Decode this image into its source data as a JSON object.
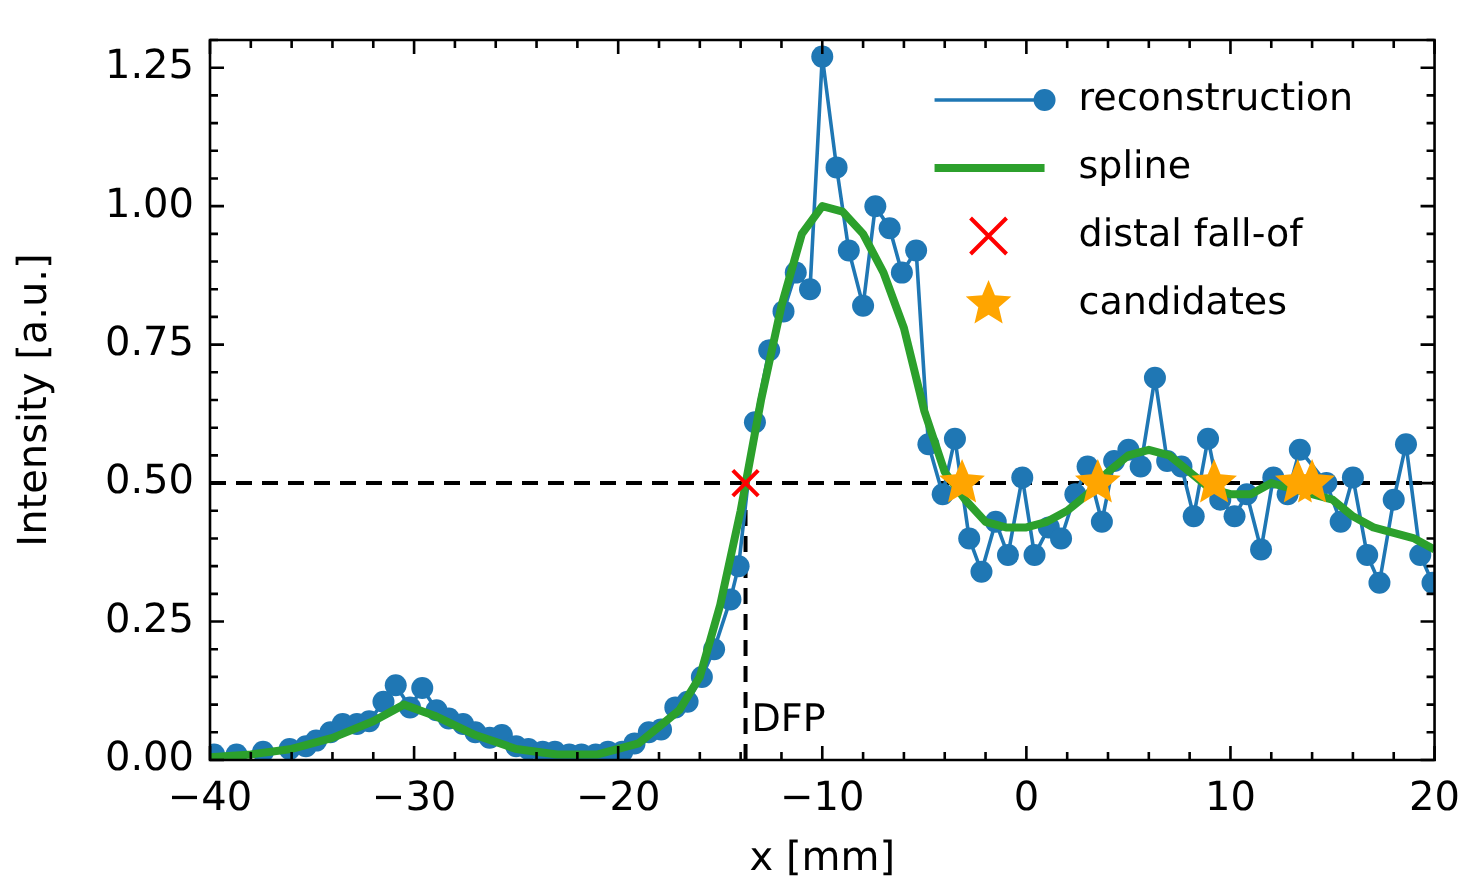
{
  "chart_data": {
    "type": "line",
    "xlabel": "x [mm]",
    "ylabel": "Intensity [a.u.]",
    "xlim": [
      -40,
      20
    ],
    "xticks": [
      {
        "value": -40,
        "label": "−40"
      },
      {
        "value": -38,
        "label": null
      },
      {
        "value": -36,
        "label": null
      },
      {
        "value": -34,
        "label": null
      },
      {
        "value": -32,
        "label": null
      },
      {
        "value": -30,
        "label": "−30"
      },
      {
        "value": -28,
        "label": null
      },
      {
        "value": -26,
        "label": null
      },
      {
        "value": -24,
        "label": null
      },
      {
        "value": -22,
        "label": null
      },
      {
        "value": -20,
        "label": "−20"
      },
      {
        "value": -18,
        "label": null
      },
      {
        "value": -16,
        "label": null
      },
      {
        "value": -14,
        "label": null
      },
      {
        "value": -12,
        "label": null
      },
      {
        "value": -10,
        "label": "−10"
      },
      {
        "value": -8,
        "label": null
      },
      {
        "value": -6,
        "label": null
      },
      {
        "value": -4,
        "label": null
      },
      {
        "value": -2,
        "label": null
      },
      0,
      {
        "value": 2,
        "label": null
      },
      {
        "value": 4,
        "label": null
      },
      {
        "value": 6,
        "label": null
      },
      {
        "value": 8,
        "label": null
      },
      10,
      {
        "value": 12,
        "label": null
      },
      {
        "value": 14,
        "label": null
      },
      {
        "value": 16,
        "label": null
      },
      {
        "value": 18,
        "label": null
      },
      20
    ],
    "ylim": [
      0,
      1.3
    ],
    "yticks": [
      {
        "value": 0,
        "label": "0.00"
      },
      {
        "value": 0.05,
        "label": null
      },
      {
        "value": 0.1,
        "label": null
      },
      {
        "value": 0.15,
        "label": null
      },
      {
        "value": 0.2,
        "label": null
      },
      0.25,
      {
        "value": 0.3,
        "label": null
      },
      {
        "value": 0.35,
        "label": null
      },
      {
        "value": 0.4,
        "label": null
      },
      {
        "value": 0.45,
        "label": null
      },
      {
        "value": 0.5,
        "label": "0.50"
      },
      {
        "value": 0.55,
        "label": null
      },
      {
        "value": 0.6,
        "label": null
      },
      {
        "value": 0.65,
        "label": null
      },
      {
        "value": 0.7,
        "label": null
      },
      0.75,
      {
        "value": 0.8,
        "label": null
      },
      {
        "value": 0.85,
        "label": null
      },
      {
        "value": 0.9,
        "label": null
      },
      {
        "value": 0.95,
        "label": null
      },
      {
        "value": 1,
        "label": "1.00"
      },
      {
        "value": 1.05,
        "label": null
      },
      {
        "value": 1.1,
        "label": null
      },
      {
        "value": 1.15,
        "label": null
      },
      {
        "value": 1.2,
        "label": null
      },
      1.25,
      {
        "value": 1.3,
        "label": null
      }
    ],
    "grid": false,
    "legend": "top right",
    "ref_lines": [
      {
        "axis": "y",
        "value": 0.5,
        "color": "#000000",
        "line_style": "dashed"
      },
      {
        "axis": "x",
        "value": -13.76,
        "label": "DFP",
        "color": "#000000",
        "line_style": "dashed"
      }
    ],
    "series": [
      {
        "name": "reconstruction",
        "color": "#1f77b4",
        "marker": "circle",
        "line_style": "solid",
        "x": [
          -39.8,
          -38.7,
          -37.4,
          -36.1,
          -35.3,
          -34.8,
          -34.1,
          -33.5,
          -32.8,
          -32.2,
          -31.5,
          -30.9,
          -30.2,
          -29.6,
          -28.9,
          -28.3,
          -27.6,
          -27.0,
          -26.3,
          -25.7,
          -25.0,
          -24.4,
          -23.7,
          -23.1,
          -22.4,
          -21.8,
          -21.1,
          -20.5,
          -19.8,
          -19.2,
          -18.5,
          -17.9,
          -17.2,
          -16.6,
          -15.9,
          -15.3,
          -14.5,
          -14.1,
          -13.3,
          -12.6,
          -11.9,
          -11.3,
          -10.6,
          -10.0,
          -9.3,
          -8.7,
          -8.0,
          -7.4,
          -6.7,
          -6.1,
          -5.4,
          -4.8,
          -4.1,
          -3.5,
          -2.8,
          -2.2,
          -1.5,
          -0.9,
          -0.2,
          0.4,
          1.1,
          1.7,
          2.4,
          3.0,
          3.7,
          4.3,
          5.0,
          5.6,
          6.3,
          6.9,
          7.6,
          8.2,
          8.9,
          9.5,
          10.2,
          10.8,
          11.5,
          12.1,
          12.8,
          13.4,
          14.1,
          14.7,
          15.4,
          16.0,
          16.7,
          17.3,
          18.0,
          18.6,
          19.3,
          19.9
        ],
        "values": [
          0.01,
          0.01,
          0.015,
          0.02,
          0.025,
          0.035,
          0.05,
          0.065,
          0.065,
          0.07,
          0.105,
          0.135,
          0.095,
          0.13,
          0.09,
          0.075,
          0.065,
          0.05,
          0.04,
          0.045,
          0.025,
          0.02,
          0.015,
          0.015,
          0.01,
          0.01,
          0.01,
          0.015,
          0.015,
          0.03,
          0.05,
          0.055,
          0.095,
          0.105,
          0.15,
          0.2,
          0.29,
          0.35,
          0.61,
          0.74,
          0.81,
          0.88,
          0.85,
          1.27,
          1.07,
          0.92,
          0.82,
          1.0,
          0.96,
          0.88,
          0.92,
          0.57,
          0.48,
          0.58,
          0.4,
          0.34,
          0.43,
          0.37,
          0.51,
          0.37,
          0.42,
          0.4,
          0.48,
          0.53,
          0.43,
          0.54,
          0.56,
          0.53,
          0.69,
          0.54,
          0.53,
          0.44,
          0.58,
          0.47,
          0.44,
          0.48,
          0.38,
          0.51,
          0.48,
          0.56,
          null,
          0.5,
          0.43,
          0.51,
          0.37,
          0.32,
          0.47,
          0.57,
          0.37,
          0.32
        ]
      },
      {
        "name": "spline",
        "color": "#2ca02c",
        "marker": "none",
        "line_style": "solid",
        "x": [
          -40,
          -38,
          -36,
          -34,
          -32,
          -30.5,
          -29,
          -27,
          -25,
          -23,
          -21,
          -19,
          -17,
          -16,
          -15,
          -14,
          -13,
          -12,
          -11,
          -10,
          -9,
          -8,
          -7,
          -6,
          -5,
          -4,
          -3,
          -2,
          -1,
          0,
          1,
          2,
          3,
          4,
          5,
          6,
          7,
          8,
          9,
          10,
          11,
          12,
          15,
          16,
          17,
          18,
          19,
          20
        ],
        "values": [
          0.005,
          0.01,
          0.02,
          0.04,
          0.07,
          0.1,
          0.08,
          0.045,
          0.02,
          0.01,
          0.01,
          0.03,
          0.09,
          0.15,
          0.28,
          0.45,
          0.65,
          0.82,
          0.95,
          1.0,
          0.99,
          0.95,
          0.88,
          0.78,
          0.63,
          0.52,
          0.47,
          0.43,
          0.42,
          0.42,
          0.43,
          0.45,
          0.48,
          0.52,
          0.55,
          0.56,
          0.55,
          0.52,
          0.49,
          0.48,
          0.48,
          0.5,
          0.47,
          0.44,
          0.42,
          0.41,
          0.4,
          0.38
        ]
      },
      {
        "name": "distal fall-of",
        "type": "scatter",
        "color": "#ff0000",
        "marker": "cross",
        "x": [
          -13.76
        ],
        "values": [
          0.5
        ]
      },
      {
        "name": "candidates",
        "type": "scatter",
        "color": "#ffa500",
        "marker": "star",
        "x": [
          -3.15,
          3.5,
          9.2,
          13.3,
          14.0
        ],
        "values": [
          0.5,
          0.5,
          0.5,
          0.5,
          0.5
        ]
      }
    ]
  }
}
